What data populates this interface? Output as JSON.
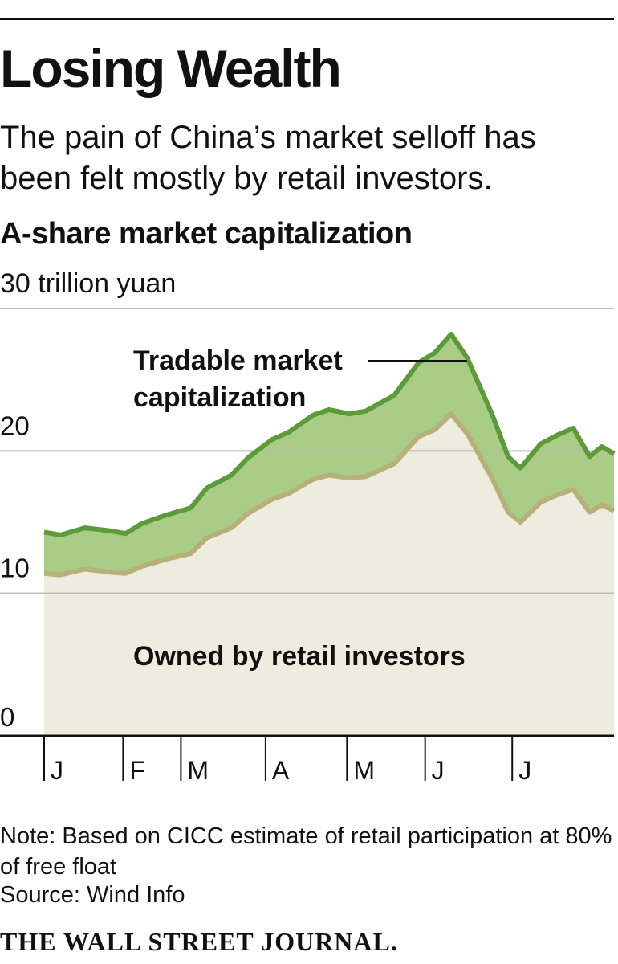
{
  "title": "Losing Wealth",
  "subtitle": "The pain of China’s market selloff has been felt mostly by retail investors.",
  "note": "Note: Based on CICC estimate of retail participation at 80% of free float",
  "source": "Source: Wind Info",
  "brand": "THE WALL STREET JOURNAL.",
  "chart_data": {
    "type": "area",
    "title": "A-share market capitalization",
    "ylabel": "30 trillion yuan",
    "ylim": [
      0,
      30
    ],
    "yticks": [
      {
        "value": 0,
        "label": "0"
      },
      {
        "value": 10,
        "label": "10"
      },
      {
        "value": 20,
        "label": "20"
      },
      {
        "value": 30,
        "label": ""
      }
    ],
    "grid": true,
    "x_range": [
      0,
      7
    ],
    "months": [
      "J",
      "F",
      "M",
      "A",
      "M",
      "J",
      "J"
    ],
    "x": [
      0,
      0.2,
      0.5,
      0.8,
      1.0,
      1.2,
      1.5,
      1.8,
      2.0,
      2.3,
      2.5,
      2.8,
      3.0,
      3.3,
      3.5,
      3.75,
      3.95,
      4.3,
      4.6,
      4.8,
      5.0,
      5.2,
      5.5,
      5.7,
      5.85,
      6.1,
      6.3,
      6.5,
      6.7,
      6.85,
      7.0
    ],
    "series": [
      {
        "name": "Tradable market capitalization",
        "color": "#5d9a3a",
        "fill": "#a9cd87",
        "values": [
          14.3,
          14.1,
          14.6,
          14.4,
          14.2,
          14.9,
          15.5,
          16.0,
          17.4,
          18.3,
          19.5,
          20.8,
          21.3,
          22.5,
          22.9,
          22.6,
          22.8,
          23.9,
          26.2,
          26.9,
          28.2,
          26.5,
          22.6,
          19.6,
          18.8,
          20.5,
          21.1,
          21.6,
          19.6,
          20.3,
          19.8
        ]
      },
      {
        "name": "Owned by retail investors",
        "color": "#b8b07a",
        "fill": "#eeecde",
        "values": [
          11.4,
          11.3,
          11.7,
          11.5,
          11.4,
          11.9,
          12.4,
          12.8,
          13.9,
          14.6,
          15.6,
          16.6,
          17.0,
          18.0,
          18.3,
          18.1,
          18.2,
          19.1,
          21.0,
          21.5,
          22.6,
          21.2,
          18.1,
          15.7,
          15.0,
          16.4,
          16.9,
          17.3,
          15.7,
          16.2,
          15.8
        ]
      }
    ],
    "annotations": [
      "Tradable market capitalization",
      "Owned by retail investors"
    ]
  }
}
